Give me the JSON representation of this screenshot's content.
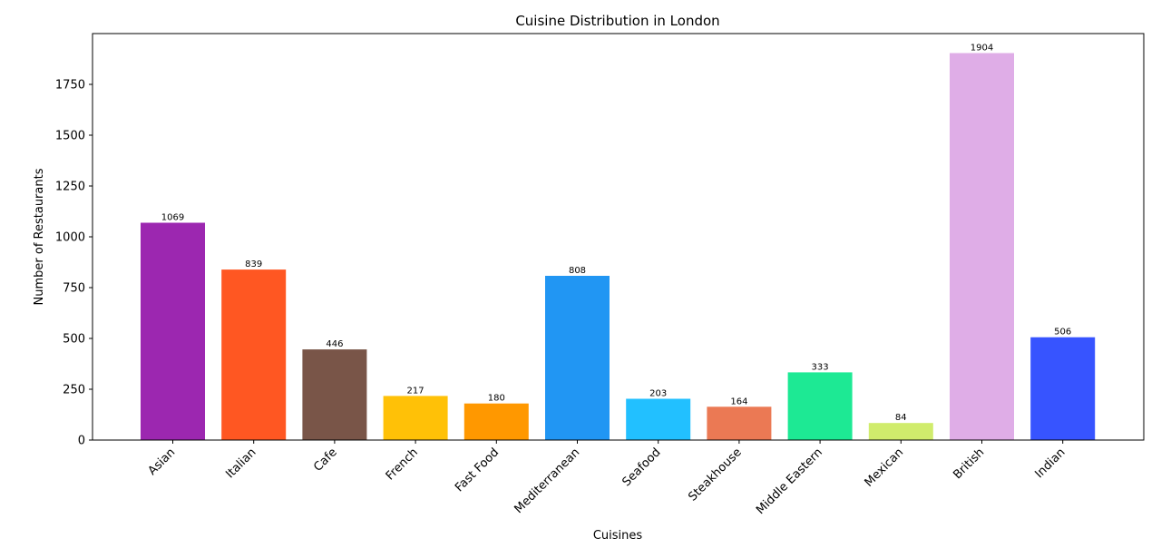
{
  "chart_data": {
    "type": "bar",
    "title": "Cuisine Distribution in London",
    "xlabel": "Cuisines",
    "ylabel": "Number of Restaurants",
    "categories": [
      "Asian",
      "Italian",
      "Cafe",
      "French",
      "Fast Food",
      "Mediterranean",
      "Seafood",
      "Steakhouse",
      "Middle Eastern",
      "Mexican",
      "British",
      "Indian"
    ],
    "values": [
      1069,
      839,
      446,
      217,
      180,
      808,
      203,
      164,
      333,
      84,
      1904,
      506
    ],
    "colors": [
      "#9c27b0",
      "#ff5722",
      "#795548",
      "#ffc107",
      "#ff9800",
      "#2196f3",
      "#22c0ff",
      "#eb7954",
      "#1de994",
      "#d0ec6c",
      "#dfade7",
      "#3754ff"
    ],
    "ylim": [
      0,
      2000
    ],
    "yticks": [
      0,
      250,
      500,
      750,
      1000,
      1250,
      1500,
      1750
    ],
    "ytick_labels": [
      "0",
      "250",
      "500",
      "750",
      "1000",
      "1250",
      "1500",
      "1750"
    ],
    "grid": false,
    "legend": "none"
  }
}
